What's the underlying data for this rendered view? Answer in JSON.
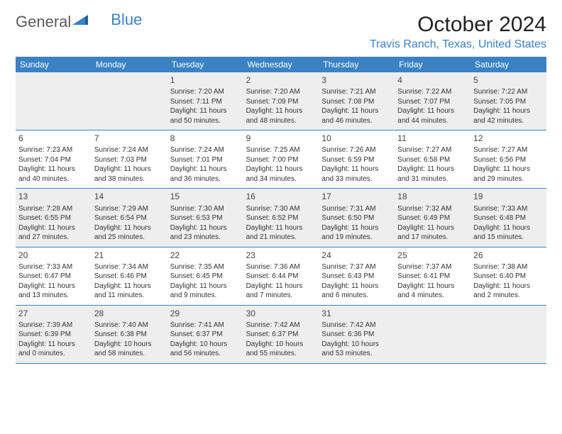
{
  "logo": {
    "part1": "General",
    "part2": "Blue"
  },
  "title": "October 2024",
  "location": "Travis Ranch, Texas, United States",
  "colors": {
    "header_bg": "#3b82c4",
    "header_text": "#ffffff",
    "shade_bg": "#eeeeee",
    "border": "#3b82c4",
    "text": "#333333"
  },
  "daynames": [
    "Sunday",
    "Monday",
    "Tuesday",
    "Wednesday",
    "Thursday",
    "Friday",
    "Saturday"
  ],
  "weeks": [
    [
      null,
      null,
      {
        "n": "1",
        "sr": "Sunrise: 7:20 AM",
        "ss": "Sunset: 7:11 PM",
        "d1": "Daylight: 11 hours",
        "d2": "and 50 minutes."
      },
      {
        "n": "2",
        "sr": "Sunrise: 7:20 AM",
        "ss": "Sunset: 7:09 PM",
        "d1": "Daylight: 11 hours",
        "d2": "and 48 minutes."
      },
      {
        "n": "3",
        "sr": "Sunrise: 7:21 AM",
        "ss": "Sunset: 7:08 PM",
        "d1": "Daylight: 11 hours",
        "d2": "and 46 minutes."
      },
      {
        "n": "4",
        "sr": "Sunrise: 7:22 AM",
        "ss": "Sunset: 7:07 PM",
        "d1": "Daylight: 11 hours",
        "d2": "and 44 minutes."
      },
      {
        "n": "5",
        "sr": "Sunrise: 7:22 AM",
        "ss": "Sunset: 7:05 PM",
        "d1": "Daylight: 11 hours",
        "d2": "and 42 minutes."
      }
    ],
    [
      {
        "n": "6",
        "sr": "Sunrise: 7:23 AM",
        "ss": "Sunset: 7:04 PM",
        "d1": "Daylight: 11 hours",
        "d2": "and 40 minutes."
      },
      {
        "n": "7",
        "sr": "Sunrise: 7:24 AM",
        "ss": "Sunset: 7:03 PM",
        "d1": "Daylight: 11 hours",
        "d2": "and 38 minutes."
      },
      {
        "n": "8",
        "sr": "Sunrise: 7:24 AM",
        "ss": "Sunset: 7:01 PM",
        "d1": "Daylight: 11 hours",
        "d2": "and 36 minutes."
      },
      {
        "n": "9",
        "sr": "Sunrise: 7:25 AM",
        "ss": "Sunset: 7:00 PM",
        "d1": "Daylight: 11 hours",
        "d2": "and 34 minutes."
      },
      {
        "n": "10",
        "sr": "Sunrise: 7:26 AM",
        "ss": "Sunset: 6:59 PM",
        "d1": "Daylight: 11 hours",
        "d2": "and 33 minutes."
      },
      {
        "n": "11",
        "sr": "Sunrise: 7:27 AM",
        "ss": "Sunset: 6:58 PM",
        "d1": "Daylight: 11 hours",
        "d2": "and 31 minutes."
      },
      {
        "n": "12",
        "sr": "Sunrise: 7:27 AM",
        "ss": "Sunset: 6:56 PM",
        "d1": "Daylight: 11 hours",
        "d2": "and 29 minutes."
      }
    ],
    [
      {
        "n": "13",
        "sr": "Sunrise: 7:28 AM",
        "ss": "Sunset: 6:55 PM",
        "d1": "Daylight: 11 hours",
        "d2": "and 27 minutes."
      },
      {
        "n": "14",
        "sr": "Sunrise: 7:29 AM",
        "ss": "Sunset: 6:54 PM",
        "d1": "Daylight: 11 hours",
        "d2": "and 25 minutes."
      },
      {
        "n": "15",
        "sr": "Sunrise: 7:30 AM",
        "ss": "Sunset: 6:53 PM",
        "d1": "Daylight: 11 hours",
        "d2": "and 23 minutes."
      },
      {
        "n": "16",
        "sr": "Sunrise: 7:30 AM",
        "ss": "Sunset: 6:52 PM",
        "d1": "Daylight: 11 hours",
        "d2": "and 21 minutes."
      },
      {
        "n": "17",
        "sr": "Sunrise: 7:31 AM",
        "ss": "Sunset: 6:50 PM",
        "d1": "Daylight: 11 hours",
        "d2": "and 19 minutes."
      },
      {
        "n": "18",
        "sr": "Sunrise: 7:32 AM",
        "ss": "Sunset: 6:49 PM",
        "d1": "Daylight: 11 hours",
        "d2": "and 17 minutes."
      },
      {
        "n": "19",
        "sr": "Sunrise: 7:33 AM",
        "ss": "Sunset: 6:48 PM",
        "d1": "Daylight: 11 hours",
        "d2": "and 15 minutes."
      }
    ],
    [
      {
        "n": "20",
        "sr": "Sunrise: 7:33 AM",
        "ss": "Sunset: 6:47 PM",
        "d1": "Daylight: 11 hours",
        "d2": "and 13 minutes."
      },
      {
        "n": "21",
        "sr": "Sunrise: 7:34 AM",
        "ss": "Sunset: 6:46 PM",
        "d1": "Daylight: 11 hours",
        "d2": "and 11 minutes."
      },
      {
        "n": "22",
        "sr": "Sunrise: 7:35 AM",
        "ss": "Sunset: 6:45 PM",
        "d1": "Daylight: 11 hours",
        "d2": "and 9 minutes."
      },
      {
        "n": "23",
        "sr": "Sunrise: 7:36 AM",
        "ss": "Sunset: 6:44 PM",
        "d1": "Daylight: 11 hours",
        "d2": "and 7 minutes."
      },
      {
        "n": "24",
        "sr": "Sunrise: 7:37 AM",
        "ss": "Sunset: 6:43 PM",
        "d1": "Daylight: 11 hours",
        "d2": "and 6 minutes."
      },
      {
        "n": "25",
        "sr": "Sunrise: 7:37 AM",
        "ss": "Sunset: 6:41 PM",
        "d1": "Daylight: 11 hours",
        "d2": "and 4 minutes."
      },
      {
        "n": "26",
        "sr": "Sunrise: 7:38 AM",
        "ss": "Sunset: 6:40 PM",
        "d1": "Daylight: 11 hours",
        "d2": "and 2 minutes."
      }
    ],
    [
      {
        "n": "27",
        "sr": "Sunrise: 7:39 AM",
        "ss": "Sunset: 6:39 PM",
        "d1": "Daylight: 11 hours",
        "d2": "and 0 minutes."
      },
      {
        "n": "28",
        "sr": "Sunrise: 7:40 AM",
        "ss": "Sunset: 6:38 PM",
        "d1": "Daylight: 10 hours",
        "d2": "and 58 minutes."
      },
      {
        "n": "29",
        "sr": "Sunrise: 7:41 AM",
        "ss": "Sunset: 6:37 PM",
        "d1": "Daylight: 10 hours",
        "d2": "and 56 minutes."
      },
      {
        "n": "30",
        "sr": "Sunrise: 7:42 AM",
        "ss": "Sunset: 6:37 PM",
        "d1": "Daylight: 10 hours",
        "d2": "and 55 minutes."
      },
      {
        "n": "31",
        "sr": "Sunrise: 7:42 AM",
        "ss": "Sunset: 6:36 PM",
        "d1": "Daylight: 10 hours",
        "d2": "and 53 minutes."
      },
      null,
      null
    ]
  ],
  "shaded_weeks": [
    0,
    2,
    4
  ]
}
